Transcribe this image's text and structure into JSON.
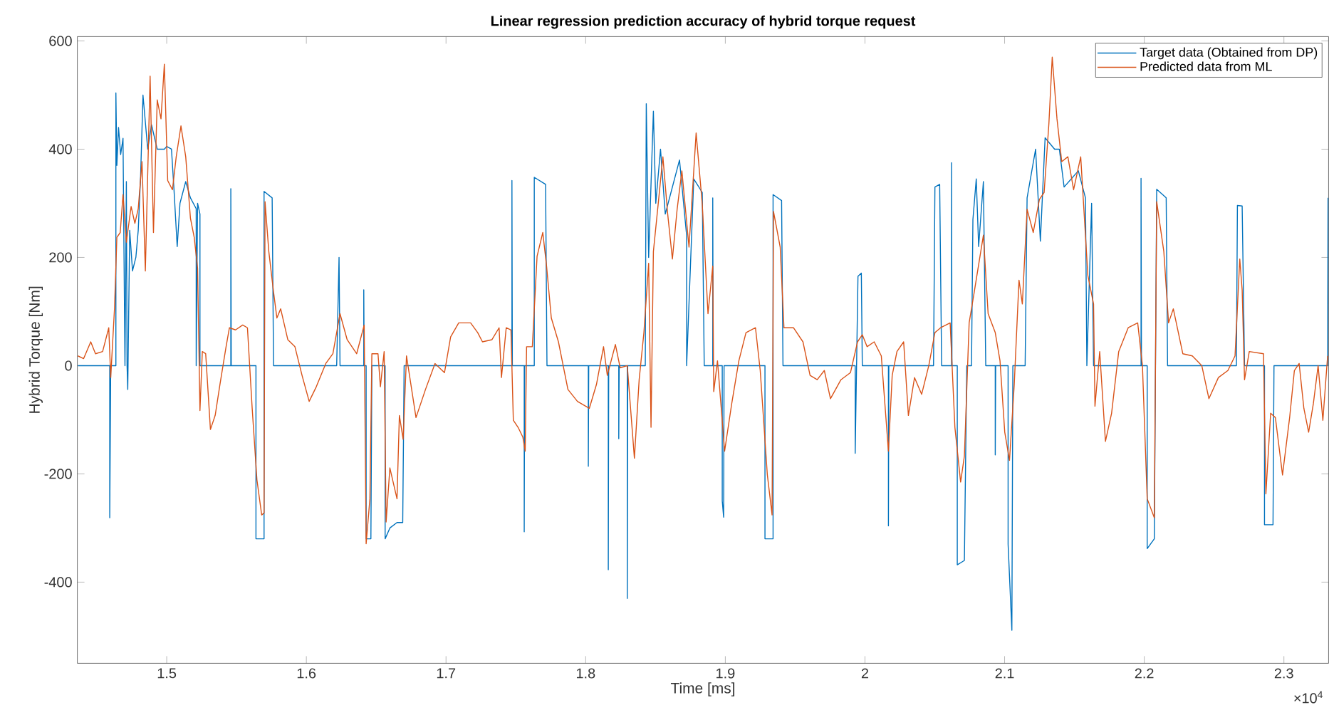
{
  "chart_data": {
    "type": "line",
    "title": "Linear regression prediction accuracy of hybrid torque request",
    "xlabel": "Time [ms]",
    "ylabel": "Hybrid Torque [Nm]",
    "annotations": [
      "×10$^{4}$"
    ],
    "xlim": [
      1.436,
      2.332
    ],
    "ylim": [
      -550,
      608
    ],
    "xticks": [
      1.5,
      1.6,
      1.7,
      1.8,
      1.9,
      2,
      2.1,
      2.2,
      2.3
    ],
    "yticks": [
      -400,
      -200,
      0,
      200,
      400,
      600
    ],
    "grid": false,
    "legend": "top right",
    "marker": "none",
    "line_style": "solid",
    "series": [
      {
        "name": "Target data (Obtained from DP)",
        "color": "#0072bd",
        "x": [
          1.4364,
          1.4592,
          1.4592,
          1.4599,
          1.4636,
          1.4636,
          1.4643,
          1.4655,
          1.467,
          1.4687,
          1.4701,
          1.4711,
          1.4716,
          1.4721,
          1.4735,
          1.4755,
          1.4779,
          1.4796,
          1.4813,
          1.483,
          1.4864,
          1.4891,
          1.4932,
          1.4983,
          1.5,
          1.5034,
          1.5051,
          1.5075,
          1.5095,
          1.5136,
          1.517,
          1.5211,
          1.5211,
          1.5221,
          1.5238,
          1.5238,
          1.5459,
          1.5459,
          1.5462,
          1.5639,
          1.5639,
          1.5697,
          1.5697,
          1.5755,
          1.5765,
          1.6217,
          1.6234,
          1.6241,
          1.6411,
          1.6411,
          1.6414,
          1.6428,
          1.6428,
          1.6462,
          1.6469,
          1.6564,
          1.6564,
          1.6598,
          1.6649,
          1.669,
          1.67,
          1.7472,
          1.7472,
          1.7475,
          1.756,
          1.756,
          1.7563,
          1.7632,
          1.7632,
          1.7713,
          1.7723,
          1.8019,
          1.8019,
          1.8022,
          1.8162,
          1.8162,
          1.8165,
          1.8237,
          1.8237,
          1.824,
          1.8298,
          1.8298,
          1.8301,
          1.8427,
          1.8434,
          1.8451,
          1.8485,
          1.8502,
          1.8536,
          1.857,
          1.8672,
          1.8723,
          1.8723,
          1.8774,
          1.8835,
          1.8849,
          1.891,
          1.891,
          1.8913,
          1.8978,
          1.8978,
          1.8988,
          1.8991,
          1.9284,
          1.9284,
          1.9342,
          1.9342,
          1.9403,
          1.9413,
          1.993,
          1.993,
          1.995,
          1.9974,
          1.9981,
          2.0168,
          2.0168,
          2.0171,
          2.0491,
          2.0501,
          2.0535,
          2.0549,
          2.062,
          2.062,
          2.0623,
          2.0661,
          2.0661,
          2.0712,
          2.0729,
          2.0763,
          2.0773,
          2.0797,
          2.0814,
          2.0848,
          2.0865,
          2.0933,
          2.0933,
          2.0936,
          2.1025,
          2.1025,
          2.1052,
          2.1059,
          2.1147,
          2.1161,
          2.1222,
          2.1256,
          2.129,
          2.1358,
          2.1392,
          2.1426,
          2.1528,
          2.1579,
          2.1589,
          2.1623,
          2.1637,
          2.1977,
          2.1977,
          2.198,
          2.2021,
          2.2021,
          2.2072,
          2.2089,
          2.2157,
          2.2167,
          2.266,
          2.2667,
          2.2701,
          2.2718,
          2.2861,
          2.2861,
          2.2922,
          2.2929,
          2.3313,
          2.3316
        ],
        "values": [
          0,
          0,
          -281,
          0,
          0,
          504,
          370,
          440,
          390,
          420,
          0,
          340,
          0,
          -44,
          250,
          175,
          200,
          250,
          350,
          500,
          400,
          445,
          400,
          400,
          405,
          400,
          330,
          220,
          300,
          340,
          310,
          290,
          0,
          300,
          280,
          0,
          0,
          327,
          0,
          0,
          -320,
          -320,
          322,
          310,
          0,
          0,
          200,
          0,
          0,
          140,
          0,
          0,
          -320,
          -320,
          0,
          0,
          -320,
          -300,
          -290,
          -290,
          0,
          0,
          342,
          0,
          0,
          -307,
          0,
          0,
          348,
          335,
          0,
          0,
          -186,
          0,
          0,
          -377,
          0,
          0,
          -135,
          0,
          0,
          -430,
          0,
          0,
          484,
          200,
          470,
          300,
          400,
          280,
          380,
          240,
          0,
          345,
          320,
          0,
          0,
          310,
          0,
          0,
          -250,
          -280,
          0,
          0,
          -320,
          -320,
          316,
          305,
          0,
          0,
          -162,
          165,
          171,
          0,
          0,
          -296,
          0,
          0,
          330,
          335,
          0,
          0,
          375,
          0,
          0,
          -368,
          -360,
          0,
          0,
          270,
          345,
          220,
          340,
          0,
          0,
          -165,
          0,
          0,
          -330,
          -489,
          0,
          0,
          310,
          400,
          230,
          421,
          400,
          400,
          330,
          360,
          310,
          0,
          300,
          0,
          0,
          346,
          0,
          0,
          -338,
          -320,
          326,
          310,
          0,
          0,
          296,
          295,
          0,
          0,
          -294,
          -294,
          0,
          0,
          310
        ]
      },
      {
        "name": "Predicted data from ML",
        "color": "#d95319",
        "x": [
          1.4364,
          1.4405,
          1.4456,
          1.449,
          1.4541,
          1.4585,
          1.4599,
          1.4626,
          1.4643,
          1.4667,
          1.4687,
          1.4711,
          1.4745,
          1.4772,
          1.4796,
          1.4823,
          1.4847,
          1.4881,
          1.4905,
          1.4932,
          1.4959,
          1.4983,
          1.5007,
          1.5041,
          1.5068,
          1.5102,
          1.5136,
          1.517,
          1.5197,
          1.5221,
          1.5238,
          1.5255,
          1.5279,
          1.5313,
          1.5347,
          1.5381,
          1.5425,
          1.5449,
          1.5493,
          1.5544,
          1.5578,
          1.5612,
          1.5646,
          1.568,
          1.5697,
          1.5704,
          1.5731,
          1.5765,
          1.5789,
          1.5816,
          1.5867,
          1.5918,
          1.5969,
          1.602,
          1.6071,
          1.6139,
          1.619,
          1.6241,
          1.6292,
          1.636,
          1.6414,
          1.6428,
          1.6455,
          1.6469,
          1.6513,
          1.653,
          1.6557,
          1.6571,
          1.6598,
          1.6649,
          1.6666,
          1.6693,
          1.6717,
          1.6785,
          1.6853,
          1.6921,
          1.6989,
          1.7033,
          1.7091,
          1.7176,
          1.7227,
          1.7261,
          1.7329,
          1.738,
          1.7397,
          1.7431,
          1.7465,
          1.7482,
          1.7516,
          1.755,
          1.7567,
          1.7577,
          1.7618,
          1.7652,
          1.7693,
          1.772,
          1.7754,
          1.7805,
          1.7873,
          1.7941,
          1.8026,
          1.8077,
          1.8128,
          1.8155,
          1.8213,
          1.8247,
          1.8298,
          1.8349,
          1.8383,
          1.8417,
          1.8451,
          1.8468,
          1.8485,
          1.8519,
          1.8553,
          1.8587,
          1.8621,
          1.8655,
          1.8689,
          1.874,
          1.8791,
          1.8835,
          1.8876,
          1.891,
          1.8917,
          1.8944,
          1.8995,
          1.9046,
          1.9097,
          1.9148,
          1.9216,
          1.925,
          1.9301,
          1.9335,
          1.9345,
          1.9393,
          1.942,
          1.9488,
          1.9556,
          1.9607,
          1.9658,
          1.9709,
          1.9753,
          1.9828,
          1.9896,
          1.9947,
          1.9981,
          2.0015,
          2.0066,
          2.0117,
          2.0168,
          2.0195,
          2.0229,
          2.0277,
          2.0311,
          2.0355,
          2.0406,
          2.0457,
          2.0501,
          2.0542,
          2.061,
          2.0644,
          2.0685,
          2.0712,
          2.0746,
          2.078,
          2.0848,
          2.0882,
          2.0933,
          2.0967,
          2.1001,
          2.1035,
          2.1069,
          2.1103,
          2.1127,
          2.1161,
          2.1205,
          2.1249,
          2.1283,
          2.1317,
          2.1341,
          2.1375,
          2.1409,
          2.1453,
          2.1494,
          2.1545,
          2.1596,
          2.1637,
          2.1647,
          2.1681,
          2.1722,
          2.1766,
          2.1817,
          2.1885,
          2.1953,
          2.1987,
          2.2021,
          2.2072,
          2.2089,
          2.214,
          2.2174,
          2.2208,
          2.2276,
          2.2344,
          2.2412,
          2.2463,
          2.2531,
          2.2599,
          2.265,
          2.2684,
          2.2701,
          2.2718,
          2.2752,
          2.2854,
          2.2871,
          2.2905,
          2.2939,
          2.299,
          2.3041,
          2.3075,
          2.3109,
          2.3143,
          2.3177,
          2.3211,
          2.3245,
          2.3279,
          2.3313
        ],
        "values": [
          18,
          13,
          44,
          22,
          26,
          70,
          -22,
          105,
          237,
          246,
          316,
          228,
          294,
          263,
          290,
          377,
          175,
          535,
          246,
          491,
          456,
          557,
          342,
          325,
          386,
          443,
          386,
          272,
          237,
          180,
          -83,
          26,
          22,
          -118,
          -92,
          -35,
          35,
          70,
          66,
          75,
          70,
          -79,
          -211,
          -276,
          -272,
          303,
          211,
          136,
          88,
          105,
          48,
          35,
          -18,
          -66,
          -39,
          4,
          22,
          96,
          48,
          22,
          75,
          -329,
          -246,
          22,
          22,
          -39,
          26,
          -289,
          -189,
          -246,
          -92,
          -136,
          18,
          -96,
          -44,
          4,
          -13,
          53,
          79,
          79,
          61,
          44,
          48,
          70,
          -22,
          70,
          66,
          -101,
          -114,
          -132,
          -158,
          35,
          35,
          202,
          246,
          184,
          88,
          44,
          -44,
          -66,
          -79,
          -35,
          35,
          -18,
          39,
          -4,
          0,
          -171,
          -26,
          61,
          189,
          -114,
          211,
          298,
          386,
          281,
          197,
          289,
          360,
          219,
          430,
          298,
          96,
          184,
          -48,
          9,
          -158,
          -70,
          9,
          61,
          70,
          -9,
          -202,
          -276,
          285,
          219,
          70,
          70,
          44,
          -18,
          -26,
          -9,
          -61,
          -26,
          -13,
          44,
          57,
          35,
          44,
          18,
          -158,
          -18,
          26,
          44,
          -92,
          -22,
          -53,
          0,
          61,
          70,
          79,
          -114,
          -215,
          -167,
          79,
          132,
          241,
          96,
          61,
          9,
          -123,
          -175,
          -35,
          158,
          114,
          289,
          246,
          307,
          320,
          447,
          570,
          456,
          377,
          386,
          325,
          386,
          167,
          114,
          -75,
          26,
          -140,
          -88,
          26,
          70,
          79,
          0,
          -246,
          -281,
          303,
          211,
          79,
          105,
          22,
          18,
          0,
          -61,
          -22,
          -9,
          18,
          197,
          140,
          -26,
          26,
          22,
          -237,
          -88,
          -96,
          -202,
          -96,
          -9,
          4,
          -79,
          -123,
          -70,
          0,
          -101,
          18
        ]
      }
    ]
  }
}
